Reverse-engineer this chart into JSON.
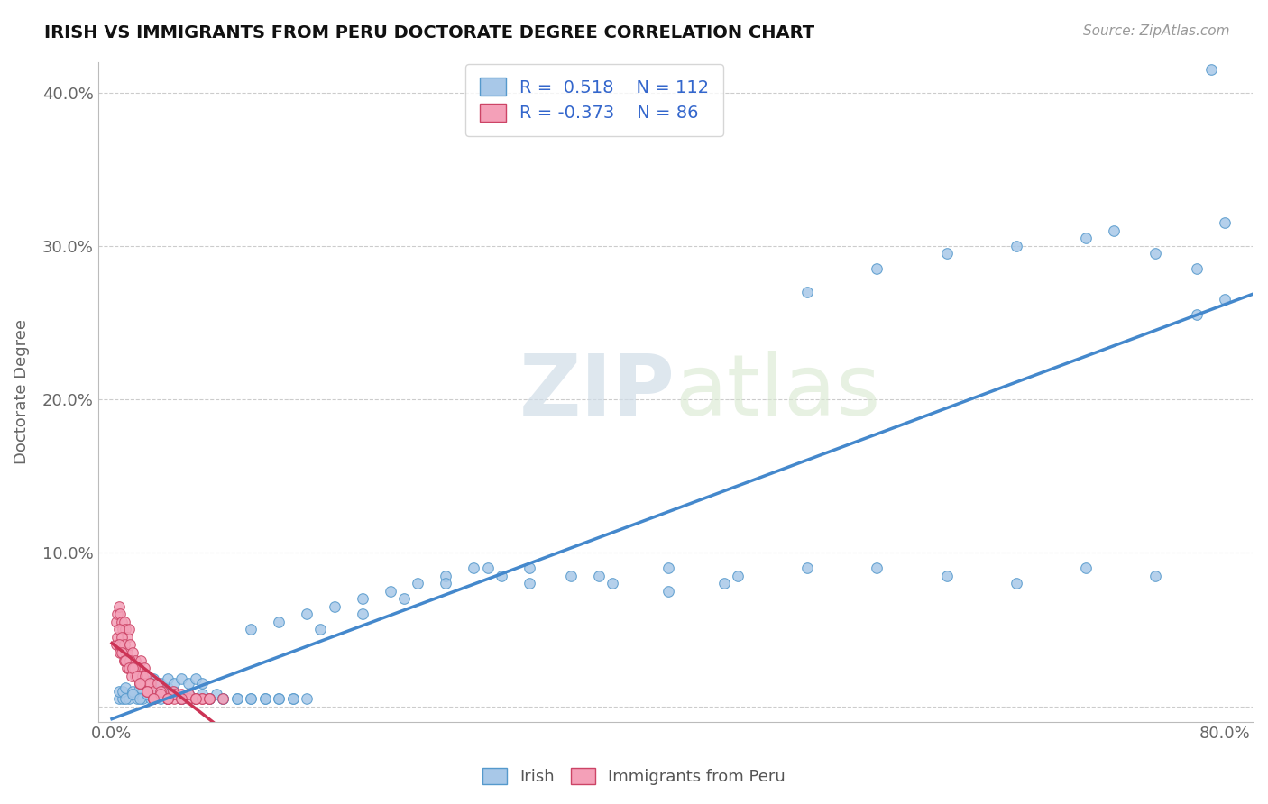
{
  "title": "IRISH VS IMMIGRANTS FROM PERU DOCTORATE DEGREE CORRELATION CHART",
  "source": "Source: ZipAtlas.com",
  "ylabel": "Doctorate Degree",
  "xlim": [
    -0.01,
    0.82
  ],
  "ylim": [
    -0.01,
    0.42
  ],
  "irish_R": 0.518,
  "irish_N": 112,
  "peru_R": -0.373,
  "peru_N": 86,
  "irish_color": "#a8c8e8",
  "peru_color": "#f4a0b8",
  "irish_edge_color": "#5599cc",
  "peru_edge_color": "#cc4466",
  "irish_line_color": "#4488cc",
  "peru_line_color": "#cc3355",
  "legend_text_color": "#3366cc",
  "irish_x": [
    0.005,
    0.008,
    0.01,
    0.012,
    0.015,
    0.018,
    0.02,
    0.022,
    0.025,
    0.028,
    0.005,
    0.008,
    0.01,
    0.015,
    0.02,
    0.025,
    0.03,
    0.035,
    0.04,
    0.045,
    0.01,
    0.015,
    0.02,
    0.025,
    0.03,
    0.035,
    0.04,
    0.045,
    0.05,
    0.055,
    0.02,
    0.025,
    0.03,
    0.035,
    0.04,
    0.045,
    0.05,
    0.055,
    0.06,
    0.065,
    0.03,
    0.035,
    0.04,
    0.05,
    0.055,
    0.06,
    0.065,
    0.07,
    0.075,
    0.08,
    0.04,
    0.05,
    0.06,
    0.07,
    0.08,
    0.09,
    0.1,
    0.11,
    0.12,
    0.13,
    0.05,
    0.06,
    0.07,
    0.08,
    0.09,
    0.1,
    0.11,
    0.12,
    0.13,
    0.14,
    0.1,
    0.12,
    0.14,
    0.16,
    0.18,
    0.2,
    0.22,
    0.24,
    0.26,
    0.28,
    0.15,
    0.18,
    0.21,
    0.24,
    0.27,
    0.3,
    0.33,
    0.36,
    0.4,
    0.44,
    0.3,
    0.35,
    0.4,
    0.45,
    0.5,
    0.55,
    0.6,
    0.65,
    0.7,
    0.75,
    0.5,
    0.55,
    0.6,
    0.65,
    0.7,
    0.72,
    0.75,
    0.78,
    0.8,
    0.8,
    0.78,
    0.79
  ],
  "irish_y": [
    0.005,
    0.005,
    0.008,
    0.005,
    0.008,
    0.005,
    0.008,
    0.005,
    0.008,
    0.005,
    0.01,
    0.01,
    0.012,
    0.01,
    0.012,
    0.01,
    0.012,
    0.01,
    0.012,
    0.01,
    0.005,
    0.008,
    0.005,
    0.008,
    0.005,
    0.008,
    0.005,
    0.008,
    0.005,
    0.008,
    0.015,
    0.015,
    0.018,
    0.015,
    0.018,
    0.015,
    0.018,
    0.015,
    0.018,
    0.015,
    0.005,
    0.005,
    0.008,
    0.005,
    0.008,
    0.005,
    0.008,
    0.005,
    0.008,
    0.005,
    0.005,
    0.005,
    0.005,
    0.005,
    0.005,
    0.005,
    0.005,
    0.005,
    0.005,
    0.005,
    0.005,
    0.005,
    0.005,
    0.005,
    0.005,
    0.005,
    0.005,
    0.005,
    0.005,
    0.005,
    0.05,
    0.055,
    0.06,
    0.065,
    0.07,
    0.075,
    0.08,
    0.085,
    0.09,
    0.085,
    0.05,
    0.06,
    0.07,
    0.08,
    0.09,
    0.09,
    0.085,
    0.08,
    0.075,
    0.08,
    0.08,
    0.085,
    0.09,
    0.085,
    0.09,
    0.09,
    0.085,
    0.08,
    0.09,
    0.085,
    0.27,
    0.285,
    0.295,
    0.3,
    0.305,
    0.31,
    0.295,
    0.285,
    0.315,
    0.265,
    0.255,
    0.415
  ],
  "peru_x": [
    0.003,
    0.004,
    0.005,
    0.006,
    0.007,
    0.008,
    0.009,
    0.01,
    0.011,
    0.012,
    0.003,
    0.004,
    0.005,
    0.006,
    0.007,
    0.008,
    0.009,
    0.01,
    0.011,
    0.012,
    0.005,
    0.007,
    0.009,
    0.011,
    0.013,
    0.015,
    0.017,
    0.019,
    0.021,
    0.023,
    0.005,
    0.007,
    0.009,
    0.011,
    0.013,
    0.015,
    0.017,
    0.019,
    0.021,
    0.023,
    0.01,
    0.012,
    0.014,
    0.016,
    0.018,
    0.02,
    0.022,
    0.024,
    0.026,
    0.028,
    0.015,
    0.018,
    0.021,
    0.024,
    0.027,
    0.03,
    0.033,
    0.036,
    0.04,
    0.044,
    0.02,
    0.025,
    0.03,
    0.035,
    0.04,
    0.045,
    0.05,
    0.055,
    0.06,
    0.065,
    0.025,
    0.03,
    0.035,
    0.04,
    0.045,
    0.05,
    0.055,
    0.06,
    0.065,
    0.07,
    0.03,
    0.04,
    0.05,
    0.06,
    0.07,
    0.08
  ],
  "peru_y": [
    0.055,
    0.06,
    0.065,
    0.06,
    0.055,
    0.05,
    0.055,
    0.05,
    0.045,
    0.05,
    0.04,
    0.045,
    0.04,
    0.035,
    0.04,
    0.035,
    0.03,
    0.035,
    0.03,
    0.025,
    0.05,
    0.045,
    0.04,
    0.035,
    0.04,
    0.035,
    0.03,
    0.025,
    0.03,
    0.025,
    0.04,
    0.035,
    0.03,
    0.025,
    0.03,
    0.025,
    0.02,
    0.025,
    0.02,
    0.015,
    0.03,
    0.025,
    0.02,
    0.025,
    0.02,
    0.015,
    0.02,
    0.015,
    0.01,
    0.015,
    0.025,
    0.02,
    0.015,
    0.02,
    0.015,
    0.01,
    0.015,
    0.01,
    0.005,
    0.01,
    0.015,
    0.01,
    0.005,
    0.01,
    0.005,
    0.005,
    0.008,
    0.005,
    0.005,
    0.005,
    0.01,
    0.005,
    0.008,
    0.005,
    0.008,
    0.005,
    0.008,
    0.005,
    0.005,
    0.005,
    0.005,
    0.005,
    0.005,
    0.005,
    0.005,
    0.005
  ]
}
